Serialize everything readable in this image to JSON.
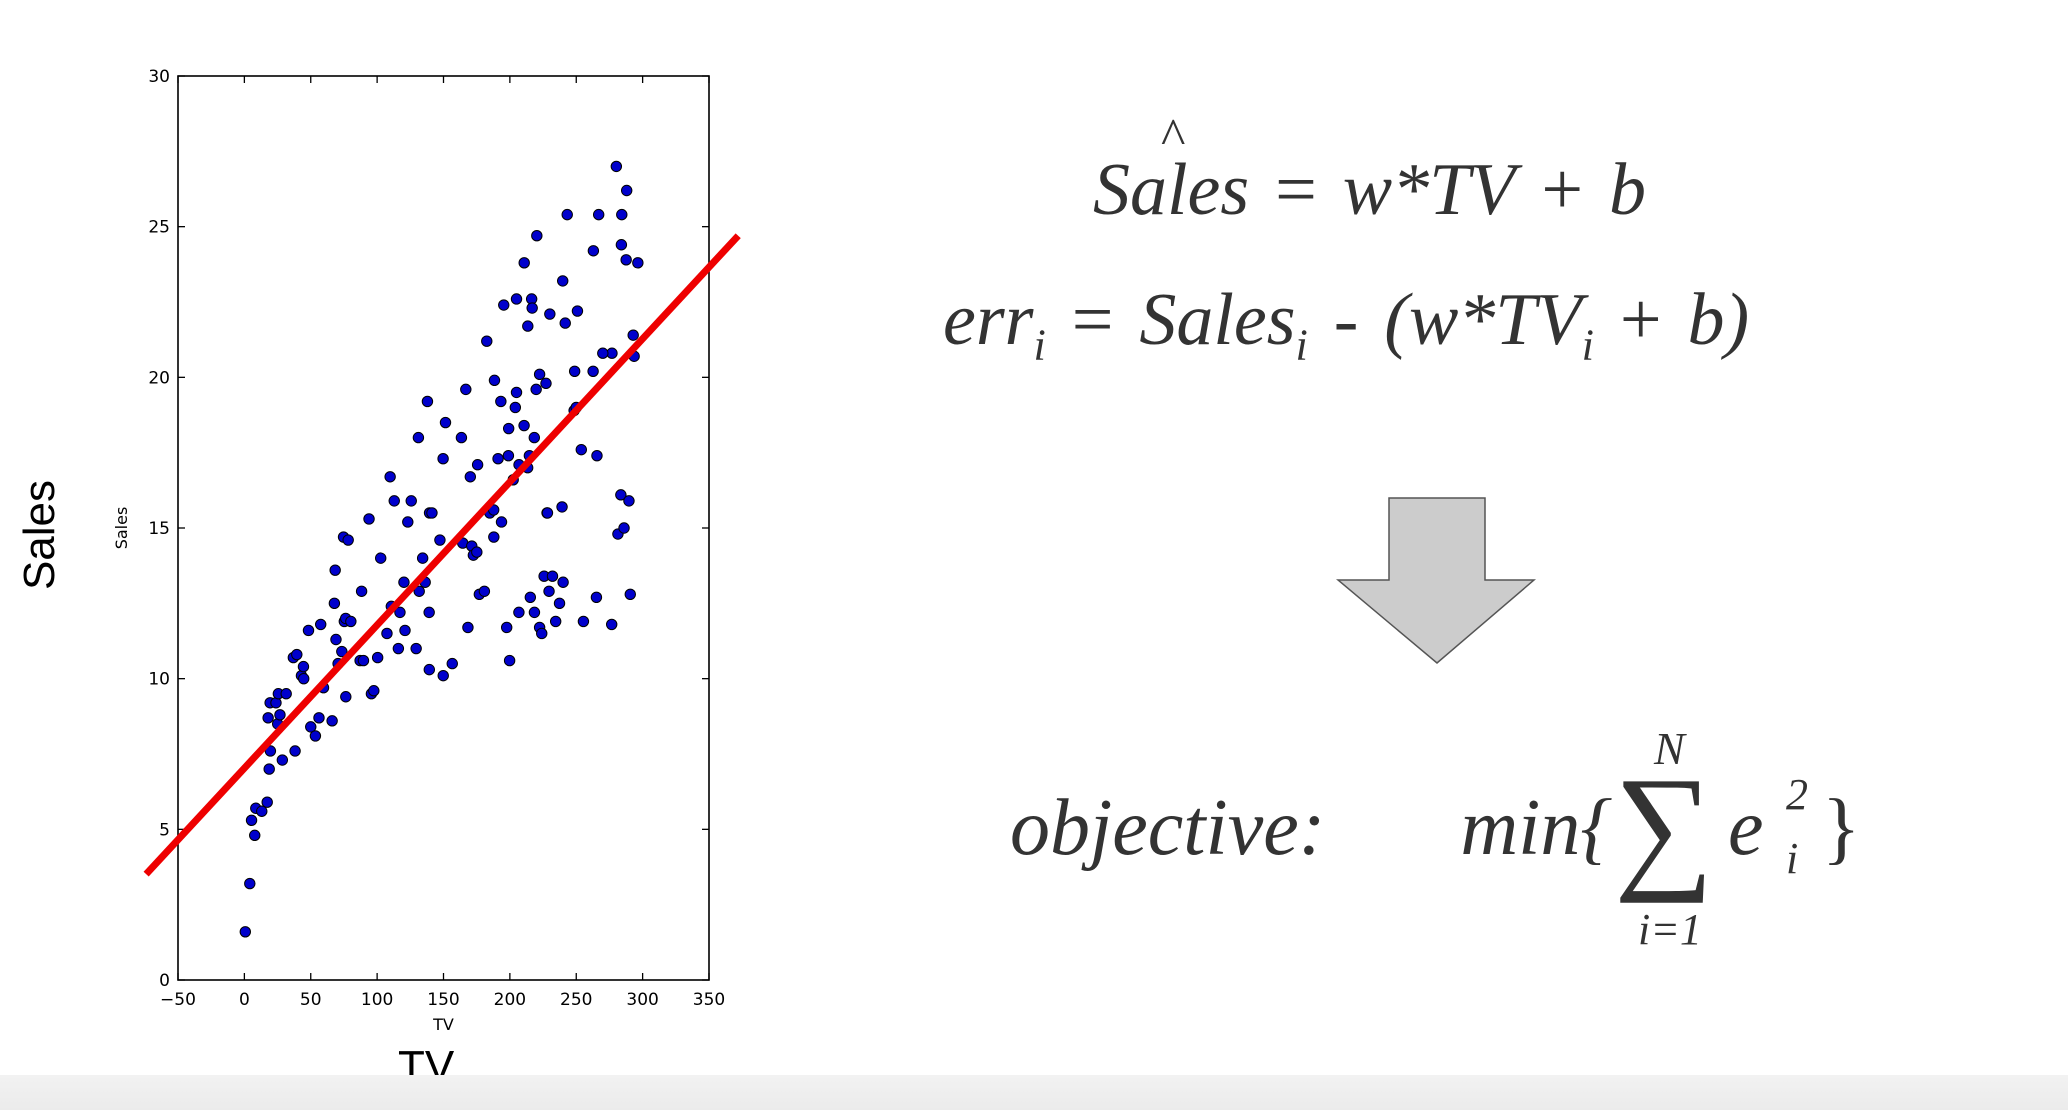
{
  "chart_data": {
    "type": "scatter",
    "xlabel": "TV",
    "ylabel": "Sales",
    "xlim": [
      -50,
      350
    ],
    "ylim": [
      0,
      30
    ],
    "xticks": [
      -50,
      0,
      50,
      100,
      150,
      200,
      250,
      300,
      350
    ],
    "yticks": [
      0,
      5,
      10,
      15,
      20,
      25,
      30
    ],
    "grid": false,
    "marker_color": "#0000cc",
    "points": [
      [
        0.7,
        1.6
      ],
      [
        4.1,
        3.2
      ],
      [
        5.4,
        5.3
      ],
      [
        7.8,
        4.8
      ],
      [
        8.6,
        5.7
      ],
      [
        13.1,
        5.6
      ],
      [
        17.2,
        5.9
      ],
      [
        17.9,
        8.7
      ],
      [
        18.7,
        7.0
      ],
      [
        19.4,
        9.2
      ],
      [
        19.6,
        7.6
      ],
      [
        23.8,
        9.2
      ],
      [
        25.1,
        8.5
      ],
      [
        25.6,
        9.5
      ],
      [
        26.8,
        8.8
      ],
      [
        28.6,
        7.3
      ],
      [
        31.5,
        9.5
      ],
      [
        36.9,
        10.7
      ],
      [
        38.2,
        7.6
      ],
      [
        39.5,
        10.8
      ],
      [
        43.0,
        10.1
      ],
      [
        44.5,
        10.4
      ],
      [
        44.7,
        10.0
      ],
      [
        48.3,
        11.6
      ],
      [
        50.0,
        8.4
      ],
      [
        53.5,
        8.1
      ],
      [
        56.2,
        8.7
      ],
      [
        57.5,
        11.8
      ],
      [
        59.6,
        9.7
      ],
      [
        66.1,
        8.6
      ],
      [
        67.8,
        12.5
      ],
      [
        68.4,
        13.6
      ],
      [
        69.0,
        11.3
      ],
      [
        70.6,
        10.5
      ],
      [
        73.4,
        10.9
      ],
      [
        74.7,
        14.7
      ],
      [
        75.3,
        11.9
      ],
      [
        76.3,
        12.0
      ],
      [
        76.4,
        9.4
      ],
      [
        78.2,
        14.6
      ],
      [
        80.2,
        11.9
      ],
      [
        87.2,
        10.6
      ],
      [
        88.3,
        12.9
      ],
      [
        89.7,
        10.6
      ],
      [
        93.9,
        15.3
      ],
      [
        95.7,
        9.5
      ],
      [
        97.5,
        9.6
      ],
      [
        100.4,
        10.7
      ],
      [
        102.7,
        14.0
      ],
      [
        107.4,
        11.5
      ],
      [
        109.8,
        16.7
      ],
      [
        110.7,
        12.4
      ],
      [
        112.9,
        15.9
      ],
      [
        116.0,
        11.0
      ],
      [
        117.2,
        12.2
      ],
      [
        120.2,
        13.2
      ],
      [
        121.0,
        11.6
      ],
      [
        123.1,
        15.2
      ],
      [
        125.7,
        15.9
      ],
      [
        129.4,
        11.0
      ],
      [
        131.1,
        18.0
      ],
      [
        131.7,
        12.9
      ],
      [
        134.3,
        14.0
      ],
      [
        136.2,
        13.2
      ],
      [
        137.9,
        19.2
      ],
      [
        139.2,
        12.2
      ],
      [
        139.3,
        10.3
      ],
      [
        139.5,
        15.5
      ],
      [
        141.3,
        15.5
      ],
      [
        147.3,
        14.6
      ],
      [
        149.7,
        17.3
      ],
      [
        149.8,
        10.1
      ],
      [
        151.5,
        18.5
      ],
      [
        156.6,
        10.5
      ],
      [
        163.5,
        18.0
      ],
      [
        164.5,
        14.5
      ],
      [
        166.8,
        19.6
      ],
      [
        168.4,
        11.7
      ],
      [
        170.2,
        16.7
      ],
      [
        171.3,
        14.4
      ],
      [
        172.5,
        14.1
      ],
      [
        175.1,
        14.2
      ],
      [
        175.7,
        17.1
      ],
      [
        177.0,
        12.8
      ],
      [
        180.8,
        12.9
      ],
      [
        182.6,
        21.2
      ],
      [
        184.9,
        15.5
      ],
      [
        187.8,
        15.6
      ],
      [
        187.9,
        14.7
      ],
      [
        188.4,
        19.9
      ],
      [
        191.1,
        17.3
      ],
      [
        193.2,
        19.2
      ],
      [
        193.7,
        15.2
      ],
      [
        195.4,
        22.4
      ],
      [
        197.6,
        11.7
      ],
      [
        198.9,
        17.4
      ],
      [
        199.1,
        18.3
      ],
      [
        199.8,
        10.6
      ],
      [
        202.5,
        16.6
      ],
      [
        204.1,
        19.0
      ],
      [
        205.0,
        22.6
      ],
      [
        206.8,
        12.2
      ],
      [
        206.9,
        17.1
      ],
      [
        210.7,
        18.4
      ],
      [
        210.8,
        23.8
      ],
      [
        213.4,
        17.0
      ],
      [
        213.5,
        21.7
      ],
      [
        214.7,
        17.4
      ],
      [
        215.4,
        12.7
      ],
      [
        216.4,
        22.6
      ],
      [
        216.8,
        22.3
      ],
      [
        218.4,
        18.0
      ],
      [
        218.5,
        12.2
      ],
      [
        219.8,
        19.6
      ],
      [
        220.3,
        24.7
      ],
      [
        222.4,
        11.7
      ],
      [
        222.4,
        20.1
      ],
      [
        224.0,
        11.5
      ],
      [
        225.8,
        13.4
      ],
      [
        227.2,
        19.8
      ],
      [
        228.0,
        15.5
      ],
      [
        228.3,
        15.5
      ],
      [
        229.5,
        12.9
      ],
      [
        230.1,
        22.1
      ],
      [
        232.1,
        13.4
      ],
      [
        234.5,
        11.9
      ],
      [
        237.4,
        12.5
      ],
      [
        239.3,
        15.7
      ],
      [
        239.8,
        23.2
      ],
      [
        240.1,
        13.2
      ],
      [
        241.7,
        21.8
      ],
      [
        243.2,
        25.4
      ],
      [
        248.4,
        18.9
      ],
      [
        248.8,
        20.2
      ],
      [
        250.9,
        22.2
      ],
      [
        253.8,
        17.6
      ],
      [
        255.4,
        11.9
      ],
      [
        262.7,
        20.2
      ],
      [
        262.9,
        24.2
      ],
      [
        265.2,
        12.7
      ],
      [
        265.6,
        17.4
      ],
      [
        266.9,
        25.4
      ],
      [
        276.7,
        11.8
      ],
      [
        276.9,
        20.8
      ],
      [
        280.2,
        27.0
      ],
      [
        281.4,
        14.8
      ],
      [
        283.6,
        16.1
      ],
      [
        284.3,
        25.4
      ],
      [
        286.0,
        15.0
      ],
      [
        287.6,
        23.9
      ],
      [
        289.7,
        15.9
      ],
      [
        290.7,
        12.8
      ],
      [
        292.9,
        21.4
      ],
      [
        293.6,
        20.7
      ],
      [
        296.4,
        23.8
      ],
      [
        284.0,
        24.4
      ],
      [
        288.0,
        26.2
      ],
      [
        270.0,
        20.8
      ],
      [
        205.0,
        19.5
      ],
      [
        250.0,
        19.0
      ]
    ],
    "fit_line": {
      "slope": 0.0475,
      "intercept": 7.03,
      "x_start": -74,
      "x_end": 372,
      "color": "#ee0000"
    }
  },
  "axis_caption_x": "TV",
  "axis_caption_y": "Sales",
  "equations": {
    "hat_symbol": "^",
    "eq1_lhs": "Sales",
    "eq1_eq": "=",
    "eq1_rhs": "w*TV",
    "eq1_plus": "+",
    "eq1_b": "b",
    "eq2_err": "err",
    "eq2_err_sub": "i",
    "eq2_eq": "=",
    "eq2_sales": "Sales",
    "eq2_sales_sub": "i",
    "eq2_minus": "-",
    "eq2_open": "(w*TV",
    "eq2_tv_sub": "i",
    "eq2_plus": "+",
    "eq2_close": "b)",
    "objective_label": "objective:",
    "min_text": "min{",
    "sum_upper": "N",
    "sum_symbol": "∑",
    "sum_lower": "i=1",
    "e_term": "e",
    "e_sup": "2",
    "e_sub": "i",
    "brace_close": "}"
  },
  "arrow_color": "#cccccc"
}
